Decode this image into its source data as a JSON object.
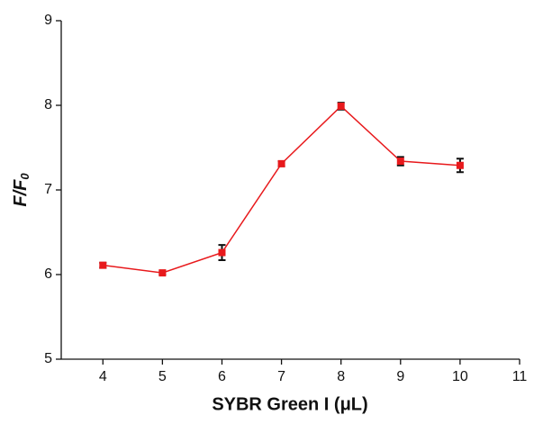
{
  "chart_data": {
    "type": "line",
    "x_label": "SYBR Green I (μL)",
    "y_label": "F/F",
    "y_label_subscript": "0",
    "x": [
      4,
      5,
      6,
      7,
      8,
      9,
      10
    ],
    "series": [
      {
        "color": "#e8191c",
        "error_color": "#111111",
        "values": [
          6.11,
          6.02,
          6.26,
          7.31,
          7.99,
          7.34,
          7.29
        ],
        "errors": [
          0.03,
          0.02,
          0.09,
          0.03,
          0.04,
          0.05,
          0.08
        ]
      }
    ],
    "xlim": [
      3.3,
      11
    ],
    "xticks": [
      4,
      5,
      6,
      7,
      8,
      9,
      10,
      11
    ],
    "ylim": [
      5,
      9
    ],
    "yticks": [
      5,
      6,
      7,
      8,
      9
    ]
  }
}
